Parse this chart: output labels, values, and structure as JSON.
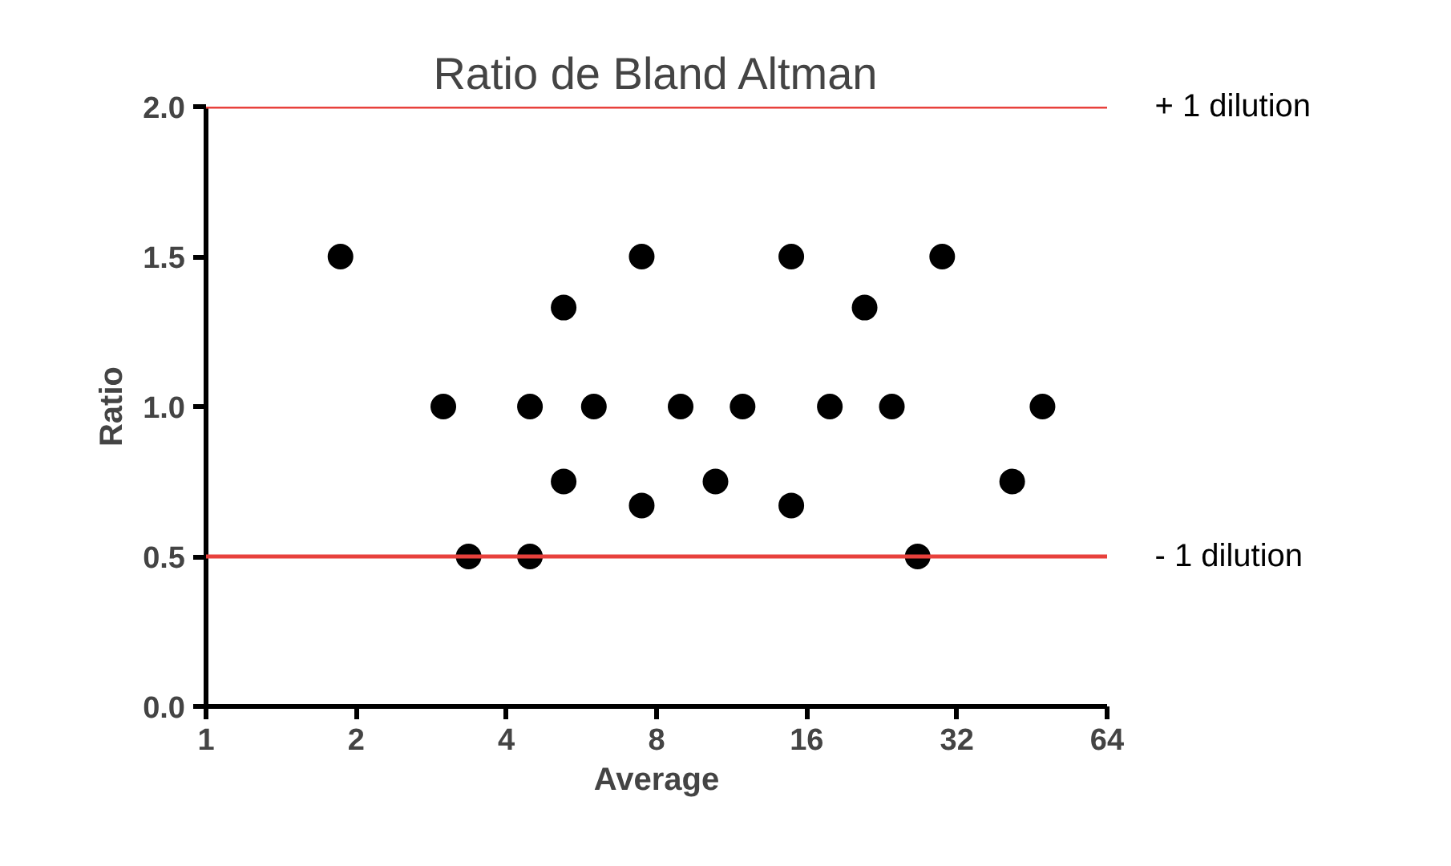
{
  "chart_data": {
    "type": "scatter",
    "title": "Ratio de Bland Altman",
    "xlabel": "Average",
    "ylabel": "Ratio",
    "x": [
      1.86,
      2.99,
      3.36,
      4.46,
      4.46,
      5.21,
      5.21,
      5.99,
      7.47,
      7.47,
      8.94,
      10.5,
      11.9,
      14.9,
      14.9,
      17.8,
      20.9,
      23.7,
      26.7,
      29.9,
      41.3,
      47.5
    ],
    "series": [
      {
        "color": "#000000",
        "values": [
          1.5,
          1.0,
          0.5,
          1.0,
          0.5,
          1.33,
          0.75,
          1.0,
          0.67,
          1.5,
          1.0,
          0.75,
          1.0,
          1.5,
          0.67,
          1.0,
          1.33,
          1.0,
          0.5,
          1.5,
          0.75,
          1.0
        ]
      }
    ],
    "log": "x",
    "xlim": [
      1,
      64
    ],
    "xticks": [
      1,
      2,
      4,
      8,
      16,
      32,
      64
    ],
    "ylim": [
      0,
      2.0
    ],
    "yticks": [
      {
        "value": 0,
        "label": "0.0"
      },
      {
        "value": 0.5,
        "label": "0.5"
      },
      {
        "value": 1,
        "label": "1.0"
      },
      {
        "value": 1.5,
        "label": "1.5"
      },
      {
        "value": 2,
        "label": "2.0"
      }
    ],
    "grid": false,
    "marker": "circle",
    "ref_lines": [
      {
        "axis": "y",
        "value": 2.0,
        "label": "+ 1 dilution",
        "color": "#e8413c"
      },
      {
        "axis": "y",
        "value": 0.5,
        "label": "- 1 dilution",
        "color": "#e8413c"
      }
    ]
  }
}
